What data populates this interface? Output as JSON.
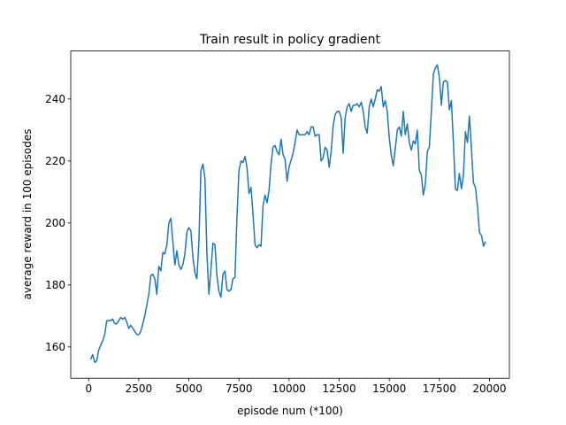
{
  "chart_data": {
    "type": "line",
    "title": "Train result in policy gradient",
    "xlabel": "episode num (*100)",
    "ylabel": "average reward in 100 episodes",
    "xlim": [
      -895,
      20995
    ],
    "ylim": [
      149.9,
      255.5
    ],
    "xticks": [
      0,
      2500,
      5000,
      7500,
      10000,
      12500,
      15000,
      17500,
      20000
    ],
    "yticks": [
      160,
      180,
      200,
      220,
      240
    ],
    "x": [
      100,
      200,
      300,
      400,
      500,
      700,
      800,
      900,
      1100,
      1200,
      1300,
      1400,
      1600,
      1700,
      1800,
      1900,
      2000,
      2100,
      2300,
      2400,
      2500,
      2600,
      2800,
      3000,
      3100,
      3200,
      3300,
      3400,
      3500,
      3600,
      3700,
      3800,
      3900,
      4000,
      4100,
      4200,
      4300,
      4400,
      4500,
      4600,
      4700,
      4800,
      4900,
      5000,
      5100,
      5200,
      5300,
      5400,
      5500,
      5600,
      5700,
      5800,
      5900,
      6000,
      6100,
      6200,
      6300,
      6400,
      6500,
      6600,
      6700,
      6800,
      6900,
      7000,
      7100,
      7200,
      7300,
      7400,
      7500,
      7600,
      7700,
      7800,
      7900,
      8000,
      8100,
      8200,
      8300,
      8400,
      8500,
      8600,
      8700,
      8800,
      8900,
      9000,
      9100,
      9200,
      9300,
      9400,
      9500,
      9600,
      9700,
      9800,
      9900,
      10000,
      10200,
      10300,
      10400,
      10500,
      10600,
      10800,
      10900,
      11000,
      11100,
      11200,
      11300,
      11400,
      11500,
      11600,
      11700,
      11800,
      11900,
      12000,
      12100,
      12200,
      12300,
      12400,
      12500,
      12600,
      12700,
      12800,
      12900,
      13000,
      13100,
      13200,
      13300,
      13400,
      13500,
      13600,
      13700,
      13800,
      13900,
      14000,
      14100,
      14200,
      14300,
      14400,
      14500,
      14600,
      14700,
      14800,
      14900,
      15000,
      15100,
      15200,
      15300,
      15400,
      15500,
      15600,
      15700,
      15800,
      15900,
      16000,
      16100,
      16200,
      16300,
      16400,
      16500,
      16600,
      16700,
      16800,
      16900,
      17000,
      17100,
      17200,
      17300,
      17400,
      17500,
      17600,
      17700,
      17800,
      17900,
      18000,
      18100,
      18200,
      18300,
      18400,
      18500,
      18600,
      18700,
      18800,
      18900,
      19000,
      19100,
      19200,
      19300,
      19400,
      19500,
      19600,
      19700,
      19800
    ],
    "series": [
      {
        "color": "#1f77b4",
        "values": [
          156,
          157.5,
          155,
          155.5,
          159,
          162,
          164,
          168.5,
          168.5,
          169,
          167.5,
          167.5,
          169.5,
          169,
          169.5,
          168,
          166,
          167,
          165,
          164,
          164,
          165,
          170,
          177,
          183,
          183.5,
          182,
          177,
          186,
          184.5,
          190.5,
          190,
          193,
          200,
          201.5,
          194,
          186.5,
          191,
          186.5,
          185,
          186.5,
          190,
          197,
          198.5,
          197.5,
          189,
          184,
          182,
          194,
          217,
          219,
          214.5,
          190,
          177,
          185,
          193.5,
          193,
          183,
          178,
          176,
          183.5,
          184.5,
          178.5,
          178,
          178.5,
          182,
          182.5,
          202,
          217,
          220,
          219.5,
          221.5,
          218,
          209.5,
          211.5,
          203,
          193,
          192,
          193,
          192.5,
          205.5,
          209,
          206.5,
          210.5,
          219,
          224.5,
          225,
          223,
          222,
          227,
          222,
          220.5,
          213.5,
          218,
          222.5,
          226,
          230,
          228.5,
          228.5,
          228.5,
          229.5,
          228.5,
          231,
          231,
          228,
          228.5,
          228.5,
          220,
          221,
          224.5,
          223.5,
          218,
          223,
          231.5,
          235,
          236,
          236,
          234,
          222.5,
          234,
          237.5,
          238.5,
          236,
          238,
          238,
          238.5,
          237.5,
          239,
          236,
          231,
          229,
          237.5,
          240,
          237.5,
          240,
          243,
          242.5,
          244,
          237.5,
          239.5,
          236,
          227.5,
          222,
          218.5,
          224,
          230,
          231,
          228,
          236,
          228.5,
          232,
          226,
          223.5,
          226.5,
          225.5,
          230,
          217,
          215.5,
          209,
          212.5,
          223,
          224.5,
          236,
          248,
          250,
          251,
          247,
          238,
          245.5,
          246,
          245.5,
          236.5,
          239.5,
          226,
          211,
          210.5,
          216,
          211,
          215.5,
          229.5,
          226,
          234.5,
          224,
          213,
          211.5,
          205.5,
          197,
          196,
          192.5,
          194
        ]
      }
    ]
  }
}
